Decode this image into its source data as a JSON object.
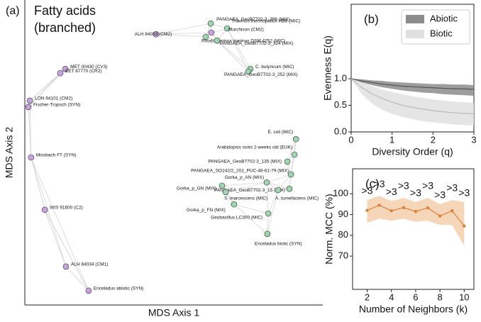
{
  "chart_data": [
    {
      "type": "network-scatter",
      "label": "(a)",
      "title": [
        "Fatty acids",
        "(branched)"
      ],
      "xlabel": "MDS Axis 1",
      "ylabel": "MDS Axis 2",
      "xlim": [
        0,
        100
      ],
      "ylim": [
        0,
        100
      ],
      "points": [
        {
          "label": "ALH 84033 (CM2)",
          "x": 44.0,
          "y": 88.8,
          "color": "#c9a3dd"
        },
        {
          "label": "PANGAEA_GeoB7702-3_396 (MIX)",
          "x": 62.4,
          "y": 92.3,
          "color": "#9fd4b0"
        },
        {
          "label": "Thermus thermophilus HB8 (MIC)",
          "x": 67.9,
          "y": 90.7,
          "color": "#9fd4b0"
        },
        {
          "label": "Murchison (CM2)",
          "x": 62.6,
          "y": 89.3,
          "color": "#c9a3dd"
        },
        {
          "label": "Rhodothermus marinus DSM 4252 (MIC)",
          "x": 60.7,
          "y": 87.9,
          "color": "#9fd4b0"
        },
        {
          "label": "PANGAEA_GeoB7702-3_324 (MIX)",
          "x": 64.5,
          "y": 86.7,
          "color": "#9fd4b0"
        },
        {
          "label": "C. butyricum (MIC)",
          "x": 75.7,
          "y": 77.4,
          "color": "#9fd4b0"
        },
        {
          "label": "PANGAEA_GeoB7702-3_252 (MIX)",
          "x": 75.0,
          "y": 76.5,
          "color": "#9fd4b0"
        },
        {
          "label": "MET 00430 (CV3)",
          "x": 13.6,
          "y": 77.4,
          "color": "#c9a3dd"
        },
        {
          "label": "EET 87770 (CR2)",
          "x": 11.9,
          "y": 76.0,
          "color": "#c9a3dd"
        },
        {
          "label": "LON 94101 (CM2)",
          "x": 1.7,
          "y": 67.0,
          "color": "#c9a3dd"
        },
        {
          "label": "Fischer-Tropsch (SYN)",
          "x": 1.2,
          "y": 64.9,
          "color": "#c9a3dd"
        },
        {
          "label": "Missbach FT (SYN)",
          "x": 2.1,
          "y": 48.4,
          "color": "#c9a3dd"
        },
        {
          "label": "WIS 91600 (C2)",
          "x": 6.7,
          "y": 31.2,
          "color": "#c9a3dd"
        },
        {
          "label": "ALH 84034 (CM1)",
          "x": 13.8,
          "y": 12.6,
          "color": "#c9a3dd"
        },
        {
          "label": "Enceladus abiotic (SYN)",
          "x": 21.4,
          "y": 4.7,
          "color": "#c9a3dd"
        },
        {
          "label": "E. coli (MIC)",
          "x": 91.0,
          "y": 54.4,
          "color": "#9fd4b0"
        },
        {
          "label": "Arabidopsis roots 2-weeks old (EUK)",
          "x": 90.5,
          "y": 49.3,
          "color": "#9fd4b0"
        },
        {
          "label": "PANGAEA_GeoB7702-3_135 (MIX)",
          "x": 88.1,
          "y": 47.0,
          "color": "#9fd4b0"
        },
        {
          "label": "PANGAEA_SO242/2_202_PUC-46-61-79 (MIX)",
          "x": 89.3,
          "y": 42.8,
          "color": "#9fd4b0"
        },
        {
          "label": "Gorka_p_AN (MIX)",
          "x": 81.2,
          "y": 40.2,
          "color": "#9fd4b0"
        },
        {
          "label": "PANGAEA_GeoB7702-3_15 (MIX)",
          "x": 88.8,
          "y": 38.1,
          "color": "#9fd4b0"
        },
        {
          "label": "A. tumefaciens (MIC)",
          "x": 85.0,
          "y": 37.7,
          "color": "#9fd4b0"
        },
        {
          "label": "Gorka_p_GN (MIX)",
          "x": 66.2,
          "y": 39.1,
          "color": "#9fd4b0"
        },
        {
          "label": "S. marcescens (MIC)",
          "x": 67.4,
          "y": 37.0,
          "color": "#9fd4b0"
        },
        {
          "label": "Gorka_p_FN (MIX)",
          "x": 70.2,
          "y": 33.0,
          "color": "#9fd4b0"
        },
        {
          "label": "Geobacillus LC300 (MIC)",
          "x": 81.7,
          "y": 30.0,
          "color": "#9fd4b0"
        },
        {
          "label": "Enceladus biotic (SYN)",
          "x": 81.4,
          "y": 23.3,
          "color": "#9fd4b0"
        }
      ]
    },
    {
      "type": "band-line",
      "label": "(b)",
      "xlabel": "Diversity Order (q)",
      "ylabel": "Evenness E(q)",
      "xlim": [
        0,
        3
      ],
      "ylim": [
        0,
        2.4
      ],
      "xticks": [
        0,
        1,
        2,
        3
      ],
      "yticks": [
        {
          "value": 0,
          "label": "0.0"
        },
        {
          "value": 0.5,
          "label": "0.5"
        },
        {
          "value": 1,
          "label": "1.0"
        }
      ],
      "legend": "upper right",
      "x": [
        0,
        0.25,
        0.5,
        0.75,
        1,
        1.25,
        1.5,
        1.75,
        2,
        2.25,
        2.5,
        2.75,
        3
      ],
      "series": [
        {
          "name": "Abiotic",
          "color": "#555555",
          "band_color": "#8c8c8c",
          "values": [
            1.0,
            0.96,
            0.93,
            0.9,
            0.88,
            0.86,
            0.85,
            0.84,
            0.83,
            0.82,
            0.81,
            0.81,
            0.8
          ],
          "upper": [
            1.0,
            0.99,
            0.97,
            0.96,
            0.94,
            0.93,
            0.92,
            0.91,
            0.9,
            0.9,
            0.89,
            0.89,
            0.88
          ],
          "lower": [
            1.0,
            0.93,
            0.88,
            0.84,
            0.81,
            0.78,
            0.76,
            0.74,
            0.73,
            0.71,
            0.7,
            0.69,
            0.68
          ]
        },
        {
          "name": "Biotic",
          "color": "#bbbbbb",
          "band_color": "#e0e0e0",
          "values": [
            1.0,
            0.84,
            0.72,
            0.63,
            0.56,
            0.5,
            0.46,
            0.43,
            0.4,
            0.38,
            0.36,
            0.35,
            0.34
          ],
          "upper": [
            1.0,
            0.93,
            0.86,
            0.8,
            0.75,
            0.71,
            0.67,
            0.64,
            0.61,
            0.59,
            0.57,
            0.56,
            0.55
          ],
          "lower": [
            1.0,
            0.72,
            0.54,
            0.42,
            0.34,
            0.28,
            0.24,
            0.2,
            0.18,
            0.16,
            0.14,
            0.13,
            0.12
          ]
        }
      ]
    },
    {
      "type": "band-line",
      "label": "(c)",
      "xlabel": "Number of Neighbors (k)",
      "ylabel": "Norm. MCC (%)",
      "xlim": [
        0.8,
        10.8
      ],
      "ylim": [
        54,
        112
      ],
      "xticks": [
        2,
        4,
        6,
        8,
        10
      ],
      "yticks": [
        70,
        80,
        90,
        100
      ],
      "x": [
        2,
        3,
        4,
        5,
        6,
        7,
        8,
        9,
        10
      ],
      "annotations": [
        ">3",
        ">3",
        ">3",
        ">3",
        ">3",
        ">3",
        ">3",
        ">3",
        ">3"
      ],
      "series": [
        {
          "color": "#d9823b",
          "band_color": "#f4cfad",
          "values": [
            92,
            94.5,
            91.8,
            93.3,
            91.5,
            93.2,
            89.3,
            91.8,
            84.5
          ],
          "upper": [
            97,
            99,
            96.5,
            98,
            96,
            98,
            95,
            97,
            96
          ],
          "lower": [
            86,
            88,
            87,
            88,
            86.5,
            87,
            85,
            85,
            75
          ]
        }
      ]
    }
  ]
}
